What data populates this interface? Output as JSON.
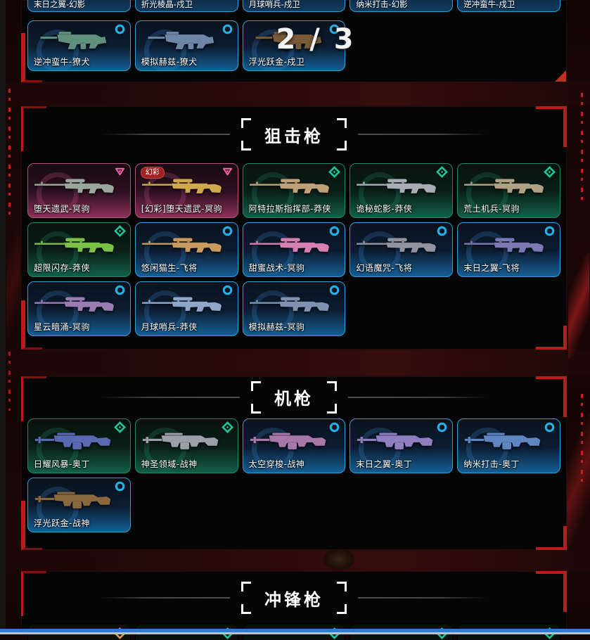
{
  "page_indicator": "2 / 3",
  "tiers": {
    "deluxe": {
      "color": "#1fb3e8",
      "icon": "circle"
    },
    "select": {
      "color": "#18c79e",
      "icon": "diamond"
    },
    "exclusive": {
      "color": "#ef5fa7",
      "icon": "triangle"
    },
    "ultra": {
      "color": "#d8a05a",
      "icon": "diamond"
    }
  },
  "sections": [
    {
      "title": "",
      "cutoff_labels": [
        {
          "name": "末日之翼-幻影",
          "tier": "deluxe"
        },
        {
          "name": "折光棱晶-戍卫",
          "tier": "deluxe"
        },
        {
          "name": "月球哨兵-戍卫",
          "tier": "deluxe"
        },
        {
          "name": "纳米打击-幻影",
          "tier": "deluxe"
        },
        {
          "name": "逆冲蛮牛-戍卫",
          "tier": "deluxe"
        }
      ],
      "cards": [
        {
          "name": "逆冲蛮牛-獠犬",
          "tier": "deluxe",
          "gun": "smg",
          "gun_color": "#5f8f7d"
        },
        {
          "name": "模拟赫兹-獠犬",
          "tier": "deluxe",
          "gun": "smg",
          "gun_color": "#6d86a8"
        },
        {
          "name": "浮光跃金-戍卫",
          "tier": "deluxe",
          "gun": "smg",
          "gun_color": "#7a5c38"
        }
      ]
    },
    {
      "title": "狙击枪",
      "cards": [
        {
          "name": "堕天遗武-冥驹",
          "tier": "exclusive",
          "gun": "sniper",
          "gun_color": "#9aa89c"
        },
        {
          "name": "[幻彩]堕天遗武-冥驹",
          "tier": "exclusive",
          "badge": "幻彩",
          "gun": "sniper",
          "gun_color": "#cfa94e"
        },
        {
          "name": "阿特拉斯指挥部-莽侠",
          "tier": "select",
          "gun": "sniper",
          "gun_color": "#bfa077"
        },
        {
          "name": "诡秘蛇影-莽侠",
          "tier": "select",
          "gun": "sniper",
          "gun_color": "#a8adb5"
        },
        {
          "name": "荒土机兵-冥驹",
          "tier": "select",
          "gun": "sniper",
          "gun_color": "#b0a184"
        },
        {
          "name": "超限闪存-莽侠",
          "tier": "select",
          "gun": "sniper",
          "gun_color": "#79c043"
        },
        {
          "name": "悠闲猫生-飞将",
          "tier": "deluxe",
          "gun": "sniper",
          "gun_color": "#c99a5d"
        },
        {
          "name": "甜蜜战术-冥驹",
          "tier": "deluxe",
          "gun": "sniper",
          "gun_color": "#d77fb0"
        },
        {
          "name": "幻语魔咒-飞将",
          "tier": "deluxe",
          "gun": "sniper",
          "gun_color": "#9093a0"
        },
        {
          "name": "末日之翼-飞将",
          "tier": "deluxe",
          "gun": "sniper",
          "gun_color": "#7a79b5"
        },
        {
          "name": "星云暗涌-冥驹",
          "tier": "deluxe",
          "gun": "sniper",
          "gun_color": "#9a7cb5"
        },
        {
          "name": "月球哨兵-莽侠",
          "tier": "deluxe",
          "gun": "sniper",
          "gun_color": "#8fa6c9"
        },
        {
          "name": "模拟赫兹-冥驹",
          "tier": "deluxe",
          "gun": "sniper",
          "gun_color": "#7f92b2"
        }
      ]
    },
    {
      "title": "机枪",
      "cards": [
        {
          "name": "日耀风暴-奥丁",
          "tier": "select",
          "gun": "mg",
          "gun_color": "#5a6ab0"
        },
        {
          "name": "神圣领域-战神",
          "tier": "select",
          "gun": "mg",
          "gun_color": "#9aa0a8"
        },
        {
          "name": "太空穿梭-战神",
          "tier": "deluxe",
          "gun": "mg",
          "gun_color": "#a878a8"
        },
        {
          "name": "末日之翼-奥丁",
          "tier": "deluxe",
          "gun": "mg",
          "gun_color": "#8f7fc0"
        },
        {
          "name": "纳米打击-奥丁",
          "tier": "deluxe",
          "gun": "mg",
          "gun_color": "#5f86c0"
        },
        {
          "name": "浮光跃金-战神",
          "tier": "deluxe",
          "gun": "mg",
          "gun_color": "#8a683f"
        }
      ]
    },
    {
      "title": "冲锋枪",
      "stub_tiers": [
        "ultra",
        "select",
        "select",
        "select",
        "select"
      ]
    }
  ]
}
